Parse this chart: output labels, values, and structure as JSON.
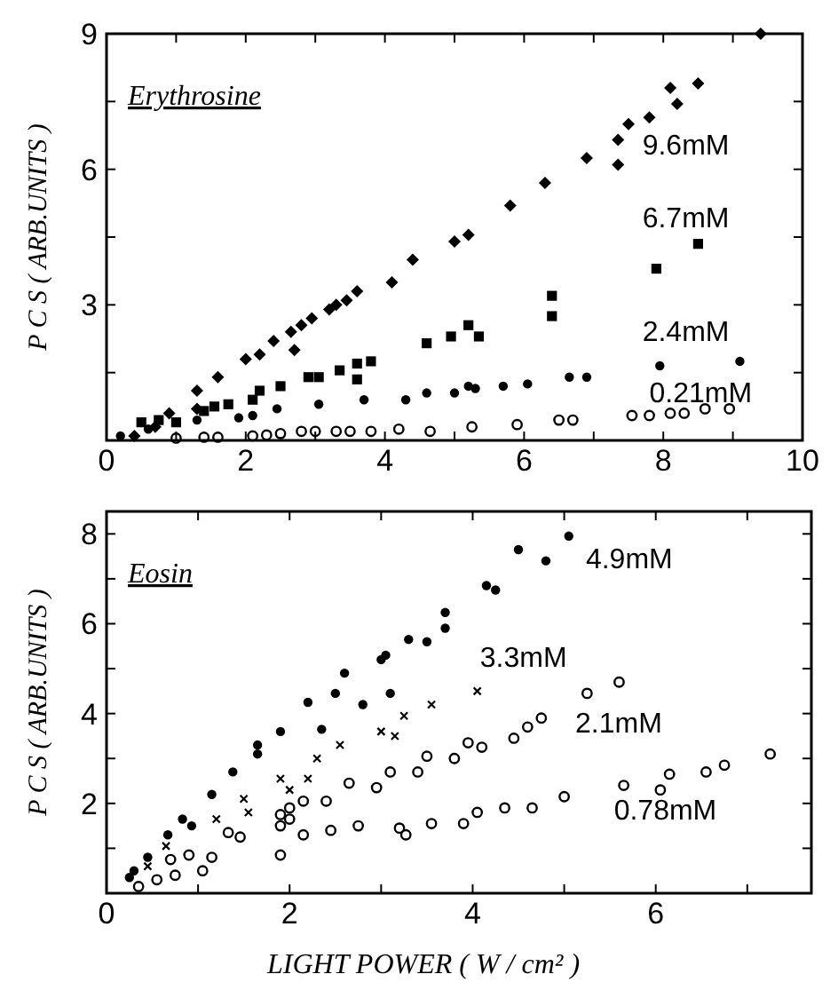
{
  "chart_data": [
    {
      "type": "scatter",
      "title": "Erythrosine",
      "ylabel": "P C S ( ARB.UNITS )",
      "xlim": [
        0,
        10
      ],
      "ylim": [
        0,
        9
      ],
      "xticks": [
        0,
        {
          "value": 1,
          "label": null
        },
        2,
        {
          "value": 3,
          "label": null
        },
        4,
        {
          "value": 5,
          "label": null
        },
        6,
        {
          "value": 7,
          "label": null
        },
        8,
        {
          "value": 9,
          "label": null
        },
        10
      ],
      "yticks": [
        {
          "value": 1.5,
          "label": null
        },
        3,
        {
          "value": 4.5,
          "label": null
        },
        6,
        {
          "value": 7.5,
          "label": null
        },
        9
      ],
      "grid": false,
      "legend": "right",
      "series": [
        {
          "name": "9.6mM",
          "color": "#000000",
          "marker": "diamond",
          "x": [
            0.4,
            0.7,
            0.9,
            1.3,
            1.3,
            1.6,
            2.0,
            2.2,
            2.4,
            2.7,
            2.65,
            2.8,
            2.95,
            3.2,
            3.3,
            3.45,
            3.6,
            4.1,
            4.4,
            5.0,
            5.2,
            5.8,
            6.3,
            6.9,
            7.35,
            7.35,
            7.5,
            7.8,
            8.1,
            8.2,
            8.5,
            9.4
          ],
          "values": [
            0.1,
            0.3,
            0.6,
            0.7,
            1.1,
            1.4,
            1.8,
            1.9,
            2.2,
            2.0,
            2.4,
            2.55,
            2.7,
            2.9,
            3.0,
            3.1,
            3.3,
            3.5,
            4.0,
            4.4,
            4.55,
            5.2,
            5.7,
            6.25,
            6.1,
            6.65,
            7.0,
            7.15,
            7.8,
            7.45,
            7.9,
            9.0
          ]
        },
        {
          "name": "6.7mM",
          "color": "#000000",
          "marker": "square",
          "x": [
            0.5,
            0.75,
            1.0,
            1.4,
            1.55,
            1.75,
            2.1,
            2.2,
            2.5,
            2.9,
            3.05,
            3.35,
            3.6,
            3.6,
            3.8,
            4.6,
            4.95,
            5.2,
            5.35,
            6.4,
            6.4,
            7.9,
            8.5
          ],
          "values": [
            0.4,
            0.45,
            0.4,
            0.65,
            0.75,
            0.8,
            0.9,
            1.1,
            1.2,
            1.4,
            1.4,
            1.55,
            1.7,
            1.35,
            1.75,
            2.15,
            2.3,
            2.55,
            2.3,
            3.2,
            2.75,
            3.8,
            4.35
          ]
        },
        {
          "name": "2.4mM",
          "color": "#000000",
          "marker": "circle",
          "x": [
            0.2,
            0.6,
            1.3,
            1.9,
            2.1,
            2.45,
            3.05,
            3.7,
            4.3,
            4.6,
            5.0,
            5.2,
            5.3,
            5.7,
            6.05,
            6.65,
            6.9,
            7.95,
            9.1
          ],
          "values": [
            0.1,
            0.25,
            0.45,
            0.5,
            0.55,
            0.7,
            0.8,
            0.9,
            0.9,
            1.05,
            1.05,
            1.2,
            1.15,
            1.2,
            1.25,
            1.4,
            1.4,
            1.65,
            1.75
          ]
        },
        {
          "name": "0.21mM",
          "color": "#000000",
          "marker": "circle",
          "x": [
            1.0,
            1.4,
            1.6,
            2.1,
            2.3,
            2.5,
            2.8,
            3.0,
            3.3,
            3.5,
            3.8,
            4.2,
            4.65,
            5.25,
            5.9,
            6.5,
            6.7,
            7.55,
            7.8,
            8.1,
            8.3,
            8.6,
            8.95
          ],
          "values": [
            0.05,
            0.07,
            0.07,
            0.1,
            0.12,
            0.15,
            0.2,
            0.2,
            0.2,
            0.2,
            0.2,
            0.25,
            0.2,
            0.3,
            0.35,
            0.45,
            0.45,
            0.55,
            0.55,
            0.6,
            0.6,
            0.7,
            0.7
          ]
        }
      ]
    },
    {
      "type": "scatter",
      "title": "Eosin",
      "ylabel": "P C S ( ARB.UNITS )",
      "xlabel": "LIGHT POWER ( W / cm² )",
      "xlim": [
        0,
        7.7
      ],
      "ylim": [
        0,
        8.5
      ],
      "xticks": [
        0,
        {
          "value": 1,
          "label": null
        },
        2,
        {
          "value": 3,
          "label": null
        },
        4,
        {
          "value": 5,
          "label": null
        },
        6,
        {
          "value": 7,
          "label": null
        }
      ],
      "yticks": [
        {
          "value": 1,
          "label": null
        },
        2,
        {
          "value": 3,
          "label": null
        },
        4,
        {
          "value": 5,
          "label": null
        },
        6,
        {
          "value": 7,
          "label": null
        },
        8
      ],
      "grid": false,
      "legend": "right",
      "series": [
        {
          "name": "4.9mM",
          "color": "#000000",
          "marker": "circle",
          "x": [
            0.25,
            0.3,
            0.45,
            0.67,
            0.83,
            0.93,
            1.15,
            1.38,
            1.65,
            1.65,
            1.9,
            2.2,
            2.35,
            2.5,
            2.6,
            2.8,
            3.0,
            3.05,
            3.1,
            3.3,
            3.5,
            3.7,
            3.7,
            4.15,
            4.25,
            4.5,
            4.8,
            5.05
          ],
          "values": [
            0.35,
            0.5,
            0.8,
            1.3,
            1.65,
            1.5,
            2.2,
            2.7,
            3.3,
            3.1,
            3.6,
            4.25,
            3.65,
            4.45,
            4.9,
            4.2,
            5.2,
            5.3,
            4.45,
            5.65,
            5.6,
            5.9,
            6.25,
            6.85,
            6.75,
            7.65,
            7.4,
            7.95
          ]
        },
        {
          "name": "3.3mM",
          "color": "#000000",
          "marker": "cross",
          "x": [
            0.45,
            0.65,
            1.2,
            1.5,
            1.55,
            1.9,
            2.0,
            2.2,
            2.3,
            2.55,
            3.0,
            3.15,
            3.25,
            3.55,
            4.05
          ],
          "values": [
            0.6,
            1.05,
            1.65,
            2.1,
            1.8,
            2.55,
            2.3,
            2.55,
            3.0,
            3.3,
            3.6,
            3.5,
            3.95,
            4.2,
            4.5
          ]
        },
        {
          "name": "2.1mM",
          "color": "#000000",
          "marker": "circle",
          "x": [
            0.7,
            0.9,
            1.05,
            1.15,
            1.33,
            1.46,
            1.9,
            1.9,
            2.0,
            2.0,
            2.15,
            2.4,
            2.65,
            2.95,
            3.1,
            3.4,
            3.5,
            3.8,
            3.95,
            4.1,
            4.45,
            4.6,
            4.75,
            5.25,
            5.6
          ],
          "values": [
            0.75,
            0.85,
            0.5,
            0.8,
            1.35,
            1.25,
            1.75,
            1.5,
            1.65,
            1.9,
            2.05,
            2.05,
            2.45,
            2.35,
            2.7,
            2.7,
            3.05,
            3.0,
            3.35,
            3.25,
            3.45,
            3.7,
            3.9,
            4.45,
            4.7
          ]
        },
        {
          "name": "0.78mM",
          "color": "#000000",
          "marker": "circle",
          "x": [
            0.35,
            0.55,
            0.75,
            1.9,
            2.15,
            2.45,
            2.75,
            3.2,
            3.27,
            3.55,
            3.9,
            4.05,
            4.35,
            4.65,
            5.0,
            5.65,
            6.05,
            6.15,
            6.55,
            6.75,
            7.25
          ],
          "values": [
            0.15,
            0.3,
            0.4,
            0.85,
            1.3,
            1.4,
            1.5,
            1.45,
            1.3,
            1.55,
            1.55,
            1.8,
            1.9,
            1.9,
            2.15,
            2.4,
            2.3,
            2.65,
            2.7,
            2.85,
            3.1
          ]
        }
      ]
    }
  ]
}
